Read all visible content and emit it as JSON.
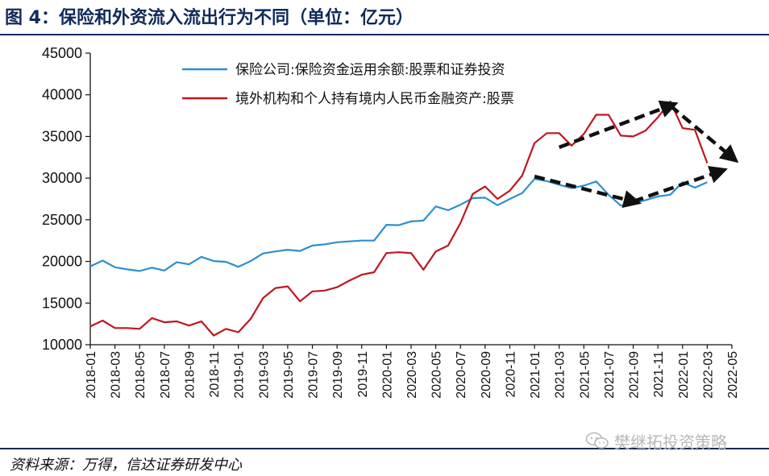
{
  "figure": {
    "title": "图 4：保险和外资流入流出行为不同（单位：亿元）",
    "source": "资料来源：万得，信达证券研发中心",
    "watermark": "樊继拓投资策略"
  },
  "chart_data": {
    "type": "line",
    "ylim": [
      10000,
      45000
    ],
    "y_ticks": [
      "45000",
      "40000",
      "35000",
      "30000",
      "25000",
      "20000",
      "15000",
      "10000"
    ],
    "x_tick_labels": [
      "2018-01",
      "2018-03",
      "2018-05",
      "2018-07",
      "2018-09",
      "2018-11",
      "2019-01",
      "2019-03",
      "2019-05",
      "2019-07",
      "2019-09",
      "2019-11",
      "2020-01",
      "2020-03",
      "2020-05",
      "2020-07",
      "2020-09",
      "2020-11",
      "2021-01",
      "2021-03",
      "2021-05",
      "2021-07",
      "2021-09",
      "2021-11",
      "2022-01",
      "2022-03",
      "2022-05"
    ],
    "x": [
      "2018-01",
      "2018-02",
      "2018-03",
      "2018-04",
      "2018-05",
      "2018-06",
      "2018-07",
      "2018-08",
      "2018-09",
      "2018-10",
      "2018-11",
      "2018-12",
      "2019-01",
      "2019-02",
      "2019-03",
      "2019-04",
      "2019-05",
      "2019-06",
      "2019-07",
      "2019-08",
      "2019-09",
      "2019-10",
      "2019-11",
      "2019-12",
      "2020-01",
      "2020-02",
      "2020-03",
      "2020-04",
      "2020-05",
      "2020-06",
      "2020-07",
      "2020-08",
      "2020-09",
      "2020-10",
      "2020-11",
      "2020-12",
      "2021-01",
      "2021-02",
      "2021-03",
      "2021-04",
      "2021-05",
      "2021-06",
      "2021-07",
      "2021-08",
      "2021-09",
      "2021-10",
      "2021-11",
      "2021-12",
      "2022-01",
      "2022-02",
      "2022-03"
    ],
    "series": [
      {
        "name": "保险公司:保险资金运用余额:股票和证券投资",
        "color": "#2e8fce",
        "values": [
          19400,
          20100,
          19300,
          19050,
          18850,
          19250,
          18900,
          19900,
          19650,
          20550,
          20050,
          19950,
          19350,
          20050,
          20950,
          21200,
          21400,
          21250,
          21900,
          22050,
          22300,
          22400,
          22500,
          22500,
          24400,
          24350,
          24800,
          24900,
          26600,
          26150,
          26800,
          27600,
          27650,
          26750,
          27500,
          28200,
          29900,
          29650,
          29200,
          28800,
          29100,
          29600,
          28000,
          26700,
          27000,
          27350,
          27800,
          28000,
          29500,
          28850,
          29500
        ]
      },
      {
        "name": "境外机构和个人持有境内人民币金融资产:股票",
        "color": "#c0161f",
        "values": [
          12200,
          12900,
          12000,
          12000,
          11900,
          13200,
          12700,
          12800,
          12300,
          12800,
          11100,
          11900,
          11500,
          13100,
          15600,
          16800,
          17000,
          15200,
          16400,
          16500,
          16900,
          17700,
          18400,
          18700,
          21000,
          21100,
          21000,
          19000,
          21200,
          21900,
          24600,
          28100,
          29000,
          27500,
          28500,
          30300,
          34200,
          35400,
          35400,
          33900,
          35300,
          37600,
          37600,
          35100,
          35000,
          35700,
          37300,
          39200,
          36000,
          35800,
          31800
        ]
      }
    ],
    "annotations": [
      {
        "type": "dashed-arrow",
        "from": [
          "2021-03",
          33700
        ],
        "to": [
          "2021-12",
          38700
        ]
      },
      {
        "type": "dashed-arrow",
        "from": [
          "2021-12",
          38700
        ],
        "to": [
          "2022-05",
          32500
        ]
      },
      {
        "type": "dashed-arrow",
        "from": [
          "2021-01",
          30200
        ],
        "to": [
          "2021-09",
          27200
        ]
      },
      {
        "type": "dashed-arrow",
        "from": [
          "2021-09",
          27200
        ],
        "to": [
          "2022-04",
          30800
        ]
      }
    ],
    "legend_position": "top",
    "grid": false
  }
}
